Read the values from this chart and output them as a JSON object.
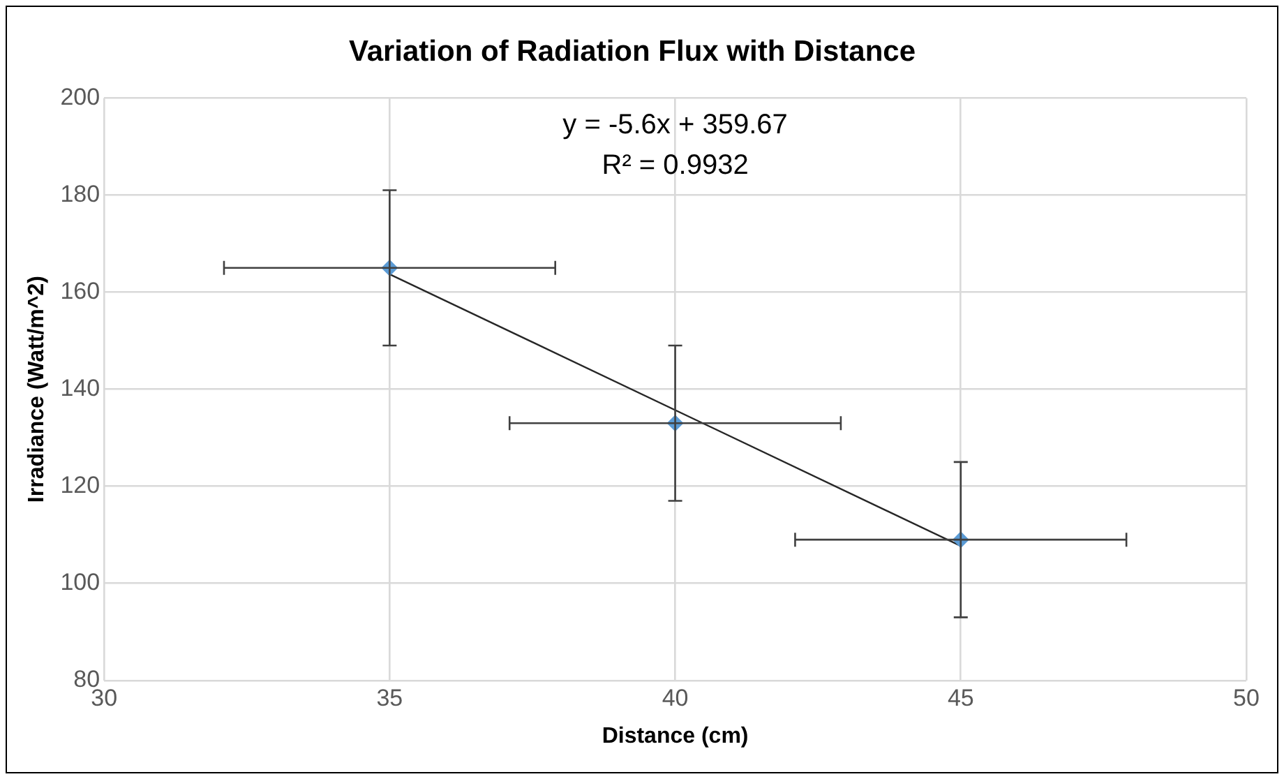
{
  "chart_data": {
    "type": "scatter",
    "title": "Variation of Radiation Flux with Distance",
    "xlabel": "Distance (cm)",
    "ylabel": "Irradiance (Watt/m^2)",
    "annotations": [
      "y = -5.6x + 359.67",
      "R² = 0.9932"
    ],
    "series": [
      {
        "type": "scatter",
        "color": "#5b9bd5",
        "x": [
          35,
          40,
          45
        ],
        "values": [
          165,
          133,
          109
        ],
        "errors": [
          16,
          16,
          16
        ],
        "xerrors": [
          2.9,
          2.9,
          2.9
        ],
        "marker": "diamond"
      },
      {
        "type": "line",
        "color": "#262626",
        "x": [
          35,
          45
        ],
        "values": [
          163.7,
          107.7
        ],
        "marker": "none",
        "line_style": "solid"
      }
    ],
    "xlim": [
      30,
      50
    ],
    "xticks": [
      30,
      35,
      40,
      45,
      50
    ],
    "ylim": [
      80,
      200
    ],
    "yticks": [
      80,
      100,
      120,
      140,
      160,
      180,
      200
    ],
    "grid": true,
    "legend": false
  }
}
